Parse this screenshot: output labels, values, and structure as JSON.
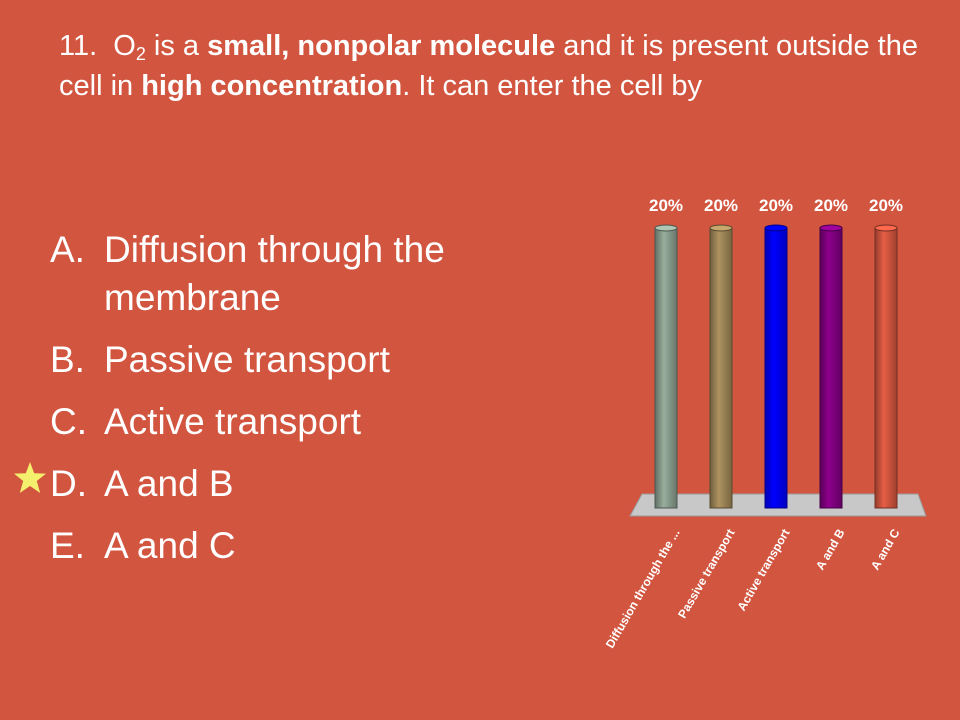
{
  "question": {
    "number": "11.",
    "molecule": "O",
    "subscript": "2",
    "t1": " is a ",
    "b1": "small, nonpolar molecule",
    "t2": " and it is present outside the cell in ",
    "b2": "high concentration",
    "t3": ".  It can enter the cell by"
  },
  "options": [
    {
      "letter": "A.",
      "text": "Diffusion through the membrane"
    },
    {
      "letter": "B.",
      "text": "Passive transport"
    },
    {
      "letter": "C.",
      "text": "Active transport"
    },
    {
      "letter": "D.",
      "text": "A and B"
    },
    {
      "letter": "E.",
      "text": "A and C"
    }
  ],
  "correct_marker": {
    "icon": "star-icon",
    "option": "D.",
    "color": "#f5ef6e"
  },
  "colors": {
    "background": "#d2553f",
    "floor": "#c8c8c8",
    "text": "#ffffff"
  },
  "chart_data": {
    "type": "bar",
    "categories": [
      "Diffusion through the ...",
      "Passive transport",
      "Active transport",
      "A and B",
      "A and C"
    ],
    "values": [
      20,
      20,
      20,
      20,
      20
    ],
    "value_labels": [
      "20%",
      "20%",
      "20%",
      "20%",
      "20%"
    ],
    "colors": [
      "#8b9e8f",
      "#9e8657",
      "#0000ff",
      "#800080",
      "#d2553f"
    ],
    "ylim": [
      0,
      20
    ],
    "grid": false,
    "legend": "none"
  }
}
